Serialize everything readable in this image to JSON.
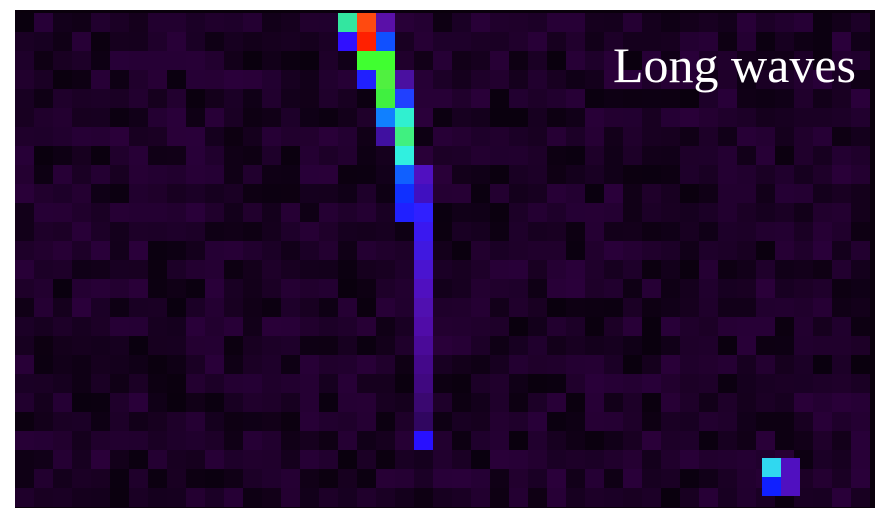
{
  "label": "Long waves"
}
